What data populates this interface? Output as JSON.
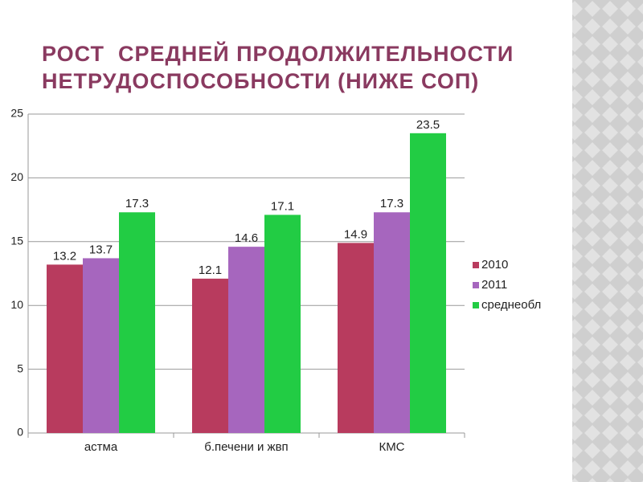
{
  "chart_data": {
    "type": "bar",
    "title": "РОСТ  СРЕДНЕЙ ПРОДОЛЖИТЕЛЬНОСТИ НЕТРУДОСПОСОБНОСТИ (НИЖЕ СОП)",
    "categories": [
      "астма",
      "б.печени и жвп",
      "КМС"
    ],
    "series": [
      {
        "name": "2010",
        "color": "#b83b5e",
        "values": [
          13.2,
          12.1,
          14.9
        ]
      },
      {
        "name": "2011",
        "color": "#a666be",
        "values": [
          13.7,
          14.6,
          17.3
        ]
      },
      {
        "name": "среднеобл",
        "color": "#22cc44",
        "values": [
          17.3,
          17.1,
          23.5
        ]
      }
    ],
    "ylim": [
      0,
      25
    ],
    "yticks": [
      0,
      5,
      10,
      15,
      20,
      25
    ],
    "grid": true,
    "legend": "right"
  }
}
